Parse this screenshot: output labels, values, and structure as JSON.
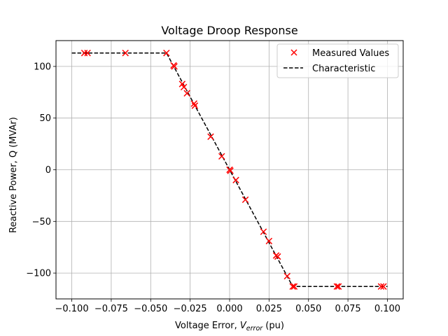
{
  "chart_data": {
    "type": "scatter",
    "title": "Voltage Droop Response",
    "xlabel_main": "Voltage Error, ",
    "xlabel_var": "V",
    "xlabel_sub": "error",
    "xlabel_unit": " (pu)",
    "ylabel": "Reactive Power, Q (MVAr)",
    "xlim": [
      -0.11,
      0.11
    ],
    "ylim": [
      -125,
      125
    ],
    "x_ticks": [
      -0.1,
      -0.075,
      -0.05,
      -0.025,
      0.0,
      0.025,
      0.05,
      0.075,
      0.1
    ],
    "x_tick_labels": [
      "−0.100",
      "−0.075",
      "−0.050",
      "−0.025",
      "0.000",
      "0.025",
      "0.050",
      "0.075",
      "0.100"
    ],
    "y_ticks": [
      -100,
      -50,
      0,
      50,
      100
    ],
    "y_tick_labels": [
      "−100",
      "−50",
      "0",
      "50",
      "100"
    ],
    "grid": true,
    "legend_position": "top-right",
    "series": [
      {
        "name": "Measured Values",
        "kind": "scatter",
        "marker": "x",
        "color": "#ff0000",
        "x": [
          -0.092,
          -0.09,
          -0.066,
          -0.04,
          -0.0355,
          -0.035,
          -0.03,
          -0.029,
          -0.027,
          -0.0225,
          -0.022,
          -0.012,
          -0.005,
          0.0,
          0.0005,
          0.004,
          0.01,
          0.0215,
          0.025,
          0.0295,
          0.0305,
          0.0365,
          0.04,
          0.041,
          0.068,
          0.069,
          0.096,
          0.0975
        ],
        "y": [
          113,
          113,
          113,
          113,
          101,
          100,
          83,
          80,
          74,
          64,
          62,
          32,
          13,
          0,
          -1,
          -10,
          -29,
          -60,
          -69,
          -83,
          -84,
          -103,
          -113,
          -113,
          -113,
          -113,
          -113,
          -113
        ]
      },
      {
        "name": "Characteristic",
        "kind": "line",
        "style": "dashed",
        "color": "#000000",
        "x": [
          -0.1,
          -0.04,
          0.04,
          0.1
        ],
        "y": [
          113,
          113,
          -113,
          -113
        ]
      }
    ]
  }
}
